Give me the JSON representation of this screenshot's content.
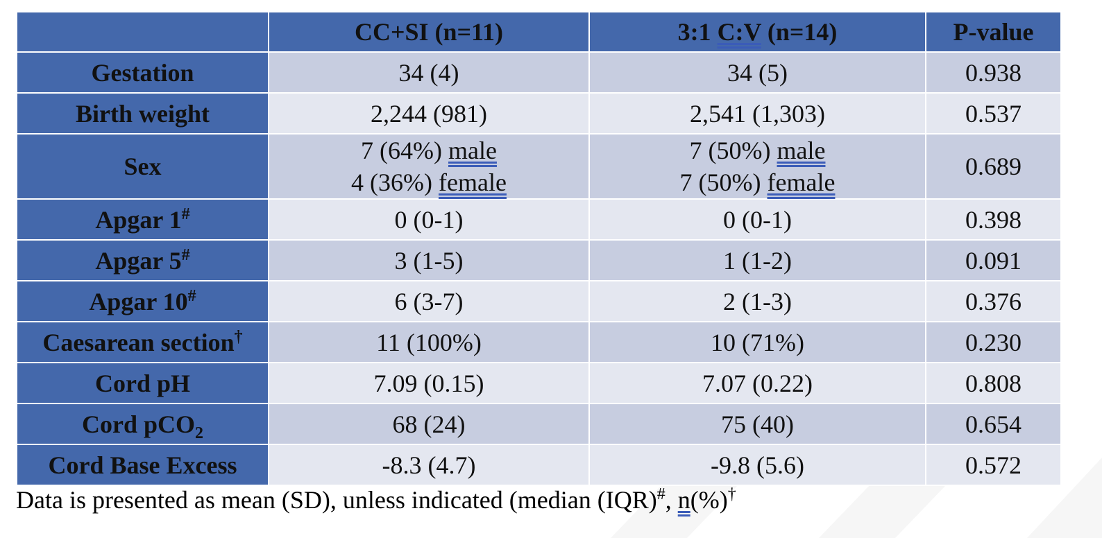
{
  "table": {
    "headers": {
      "col0": "",
      "col1": "CC+SI (n=11)",
      "col2_prefix": "3:1 ",
      "col2_underlined": "C:V",
      "col2_suffix": " (n=14)",
      "col3": "P-value"
    },
    "rows": [
      {
        "label": "Gestation",
        "mark": "",
        "cc_si": "34 (4)",
        "cv": "34 (5)",
        "p": "0.938"
      },
      {
        "label": "Birth weight",
        "mark": "",
        "cc_si": "2,244 (981)",
        "cv": "2,541 (1,303)",
        "p": "0.537"
      },
      {
        "label": "Sex",
        "mark": "",
        "cc_si_male_value": "7 (64%) ",
        "cc_si_male_word": "male",
        "cc_si_female_value": "4 (36%) ",
        "cc_si_female_word": "female",
        "cv_male_value": "7 (50%) ",
        "cv_male_word": "male",
        "cv_female_value": "7 (50%) ",
        "cv_female_word": "female",
        "p": "0.689"
      },
      {
        "label": "Apgar 1",
        "mark": "#",
        "cc_si": "0 (0-1)",
        "cv": "0 (0-1)",
        "p": "0.398"
      },
      {
        "label": "Apgar 5",
        "mark": "#",
        "cc_si": "3 (1-5)",
        "cv": "1 (1-2)",
        "p": "0.091"
      },
      {
        "label": "Apgar 10",
        "mark": "#",
        "cc_si": "6 (3-7)",
        "cv": "2 (1-3)",
        "p": "0.376"
      },
      {
        "label": "Caesarean section",
        "mark": "†",
        "cc_si": "11 (100%)",
        "cv": "10 (71%)",
        "p": "0.230"
      },
      {
        "label": "Cord pH",
        "mark": "",
        "cc_si": "7.09 (0.15)",
        "cv": "7.07 (0.22)",
        "p": "0.808"
      },
      {
        "label": "Cord pCO",
        "sub": "2",
        "cc_si": "68 (24)",
        "cv": "75 (40)",
        "p": "0.654"
      },
      {
        "label": "Cord Base Excess",
        "mark": "",
        "cc_si": "-8.3 (4.7)",
        "cv": "-9.8 (5.6)",
        "p": "0.572"
      }
    ]
  },
  "footnote": {
    "part1": "Data is presented as mean (SD), unless indicated (median (IQR)",
    "mark1": "#",
    "part2": ", ",
    "underlined": "n",
    "part3": "(%)",
    "mark2": "†"
  },
  "colors": {
    "header_blue": "#4468ab",
    "row_dark": "#c7cde0",
    "row_light": "#e4e7f0",
    "underline": "#3b5cb8"
  }
}
